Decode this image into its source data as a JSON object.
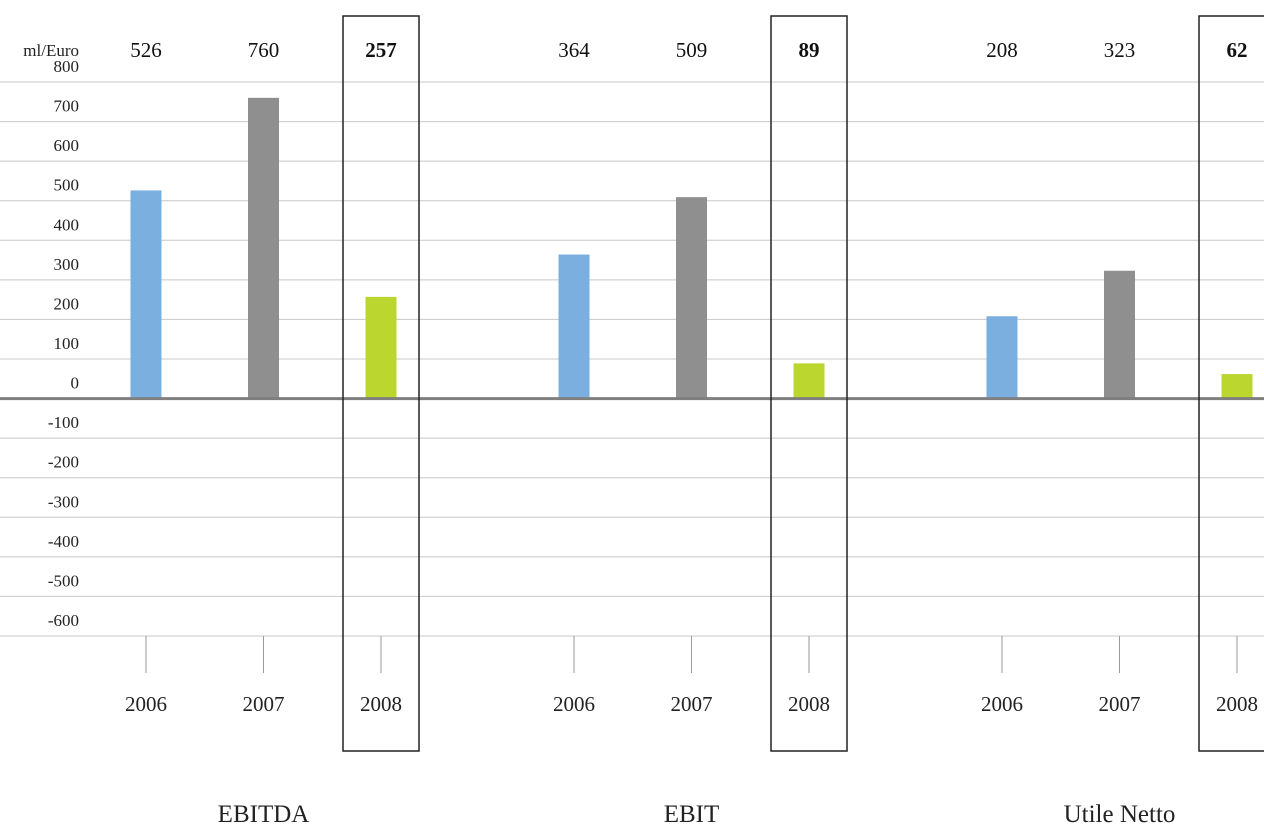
{
  "chart_data": {
    "type": "bar",
    "unit_label": "ml/Euro",
    "ylim": [
      -600,
      800
    ],
    "yticks": [
      800,
      700,
      600,
      500,
      400,
      300,
      200,
      100,
      0,
      -100,
      -200,
      -300,
      -400,
      -500,
      -600
    ],
    "grid": true,
    "groups": [
      {
        "label": "EBITDA",
        "bars": [
          {
            "year": "2006",
            "value": 526,
            "value_label": "526"
          },
          {
            "year": "2007",
            "value": 760,
            "value_label": "760"
          },
          {
            "year": "2008",
            "value": 257,
            "value_label": "257",
            "highlighted": true
          }
        ]
      },
      {
        "label": "EBIT",
        "bars": [
          {
            "year": "2006",
            "value": 364,
            "value_label": "364"
          },
          {
            "year": "2007",
            "value": 509,
            "value_label": "509"
          },
          {
            "year": "2008",
            "value": 89,
            "value_label": "89",
            "highlighted": true
          }
        ]
      },
      {
        "label": "Utile Netto",
        "bars": [
          {
            "year": "2006",
            "value": 208,
            "value_label": "208"
          },
          {
            "year": "2007",
            "value": 323,
            "value_label": "323"
          },
          {
            "year": "2008",
            "value": 62,
            "value_label": "62",
            "highlighted": true
          }
        ]
      }
    ],
    "colors": {
      "2006": "#7aafe0",
      "2007": "#8f8f8f",
      "2008": "#bcd630"
    }
  }
}
